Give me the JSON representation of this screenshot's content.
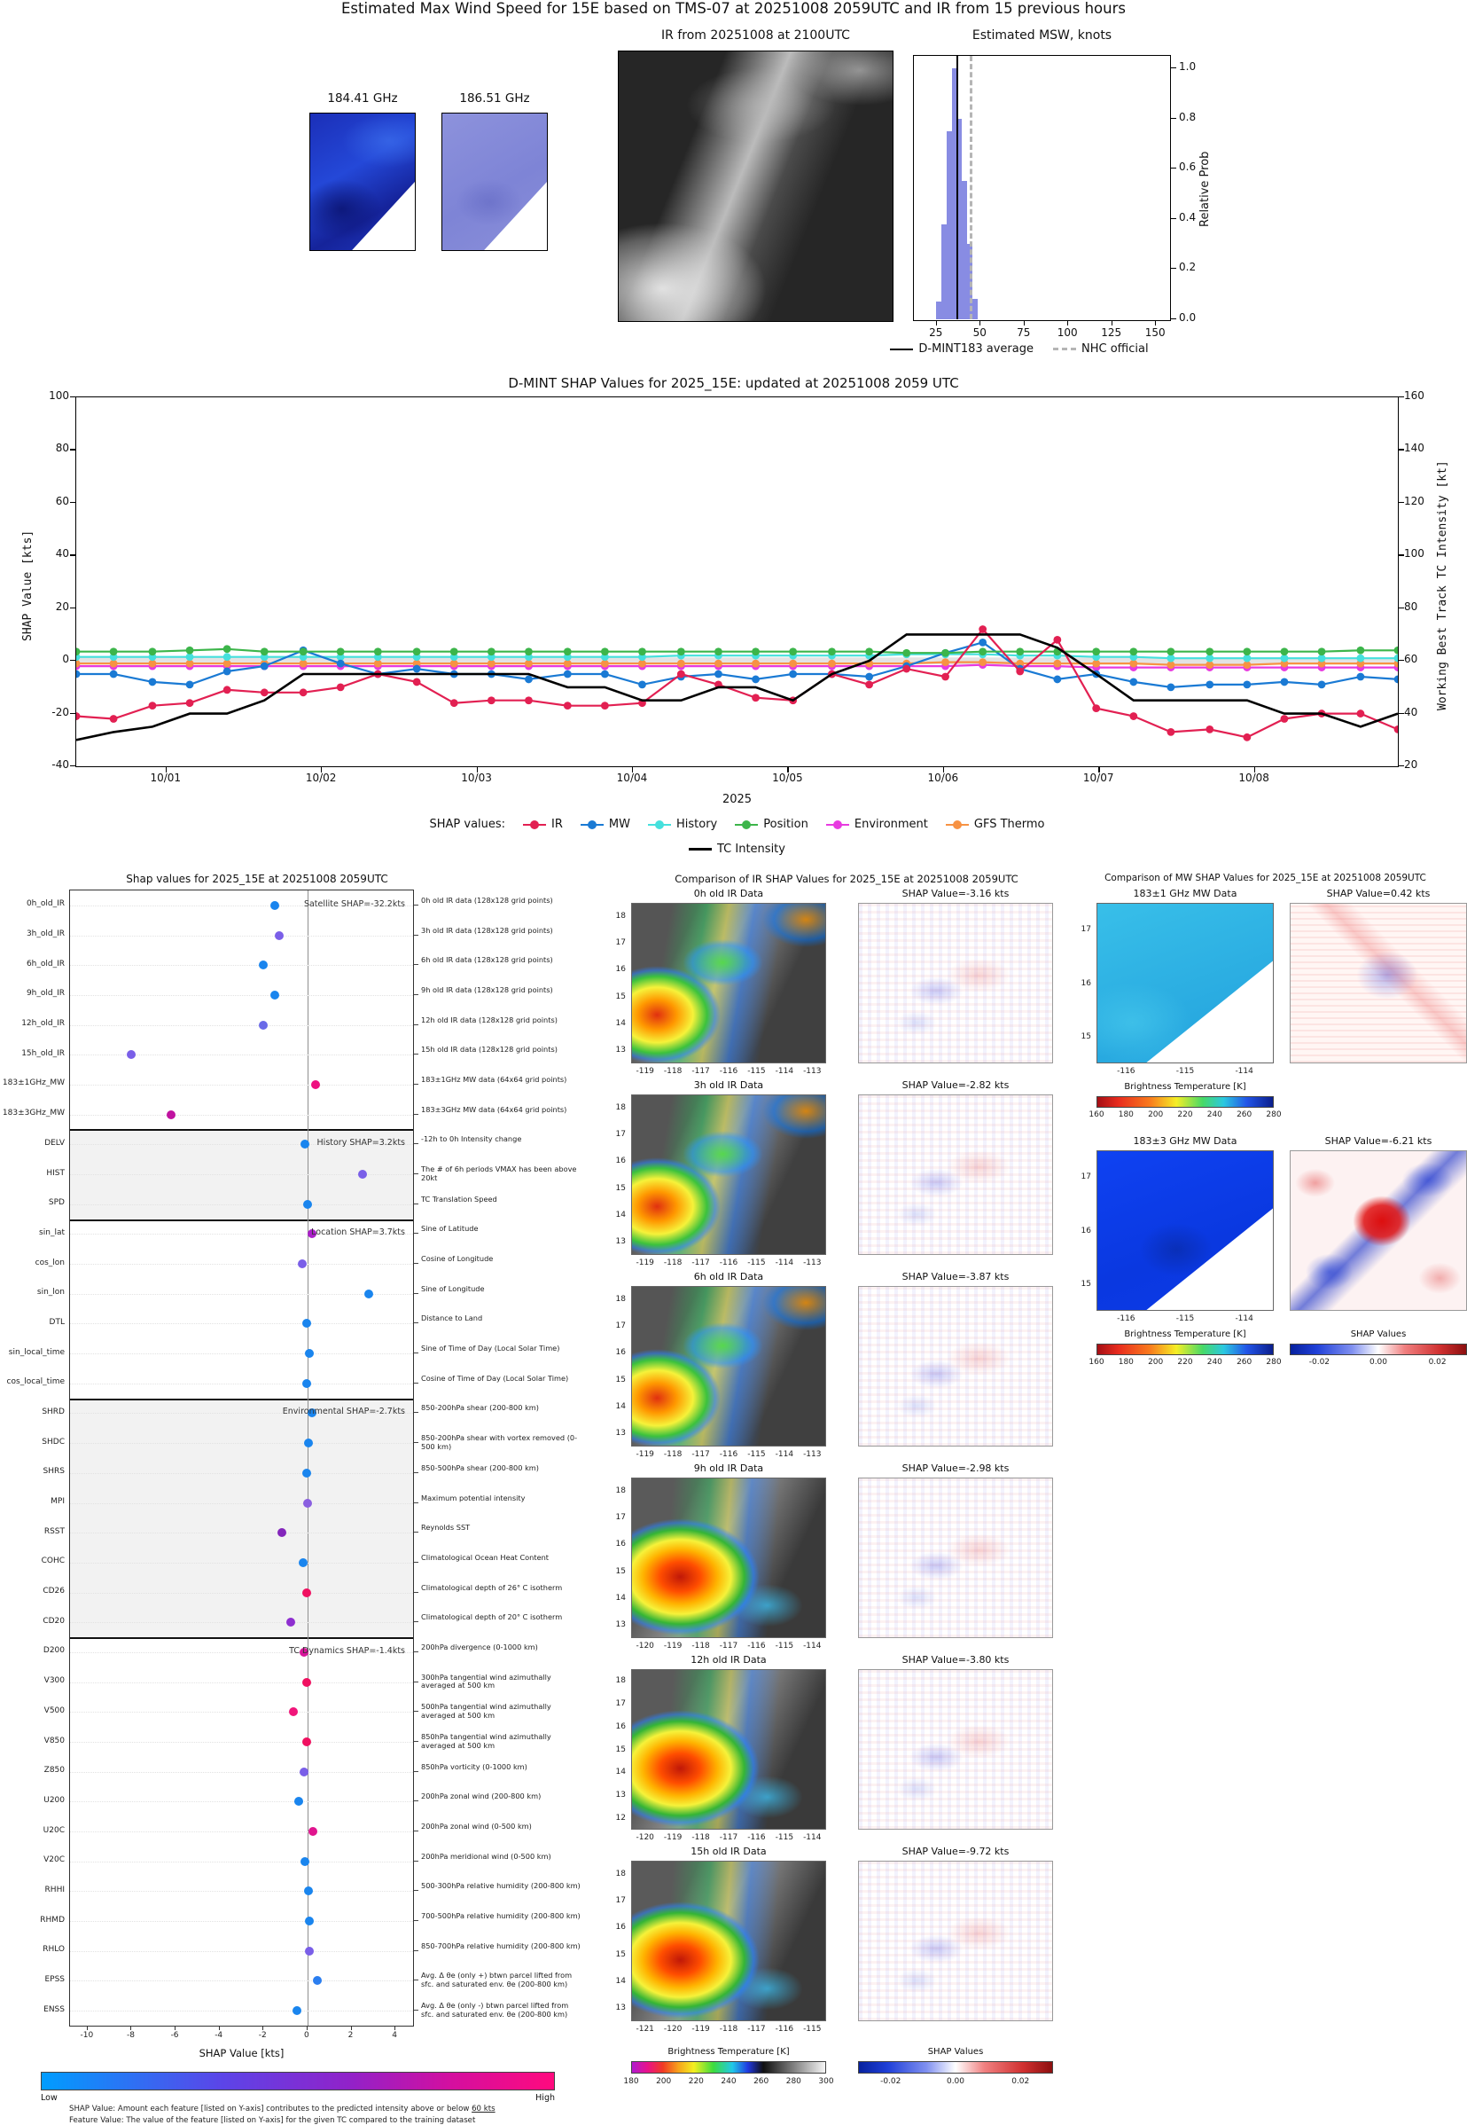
{
  "page": {
    "title_main": "Estimated Max Wind Speed for 15E based on TMS-07 at 20251008 2059UTC and IR from 15 previous hours"
  },
  "top": {
    "mw1_label": "184.41 GHz",
    "mw2_label": "186.51 GHz",
    "ir_subtitle": "IR from 20251008 at 2100UTC",
    "hist_title": "Estimated MSW, knots",
    "hist_ylabel": "Relative Prob",
    "legend_avg": "D-MINT183 average",
    "legend_nhc": "NHC official"
  },
  "timeseries": {
    "title": "D-MINT SHAP Values for 2025_15E: updated at 20251008 2059 UTC",
    "ylabel_left": "SHAP Value [kts]",
    "ylabel_right": "Working Best Track TC Intensity [kt]",
    "xlabel": "2025",
    "legend_prefix": "SHAP values:"
  },
  "dotplot": {
    "title": "Shap values for 2025_15E at 20251008 2059UTC",
    "xlabel": "SHAP Value [kts]",
    "colorbar_low": "Low",
    "colorbar_high": "High",
    "footnote1a": "SHAP Value: Amount each feature [listed on Y-axis] contributes to the predicted intensity above or below ",
    "footnote1b": "60 kts",
    "footnote2": "Feature Value: The value of the feature [listed on Y-axis] for the given TC compared to the training dataset"
  },
  "chart_data": [
    {
      "type": "bar",
      "title": "Estimated MSW, knots",
      "ylabel": "Relative Prob",
      "xlim": [
        12,
        158
      ],
      "ylim": [
        0,
        1.05
      ],
      "x_ticks": [
        25,
        50,
        75,
        100,
        125,
        150
      ],
      "y_tick_labels": [
        "1.0",
        "0.8",
        "0.6",
        "0.4",
        "0.2",
        "0.0"
      ],
      "y_tick_values": [
        1.0,
        0.8,
        0.6,
        0.4,
        0.2,
        0.0
      ],
      "bin_centers": [
        26,
        29,
        32,
        35,
        38,
        41,
        44,
        47
      ],
      "bin_width": 3,
      "heights": [
        0.07,
        0.38,
        0.75,
        1.0,
        0.8,
        0.55,
        0.3,
        0.08
      ],
      "dmint183_average_kts": 36,
      "nhc_official_kts": 44,
      "bar_color": "#7b7fe0"
    },
    {
      "type": "line",
      "title": "D-MINT SHAP Values for 2025_15E: updated at 20251008 2059 UTC",
      "xlabel": "2025",
      "ylabel_left": "SHAP Value [kts]",
      "ylabel_right": "Working Best Track TC Intensity [kt]",
      "xlim": [
        0,
        8.5
      ],
      "ylim_left": [
        -40,
        100
      ],
      "ylim_right": [
        20,
        160
      ],
      "y_ticks_left": [
        100,
        80,
        60,
        40,
        20,
        0,
        -20,
        -40
      ],
      "y_ticks_right": [
        160,
        140,
        120,
        100,
        80,
        60,
        40,
        20
      ],
      "x_tick_positions": [
        0.58,
        1.58,
        2.58,
        3.58,
        4.58,
        5.58,
        6.58,
        7.58
      ],
      "x_tick_labels": [
        "10/01",
        "10/02",
        "10/03",
        "10/04",
        "10/05",
        "10/06",
        "10/07",
        "10/08"
      ],
      "x_days": [
        0,
        0.24,
        0.49,
        0.73,
        0.97,
        1.21,
        1.46,
        1.7,
        1.94,
        2.19,
        2.43,
        2.67,
        2.91,
        3.16,
        3.4,
        3.64,
        3.89,
        4.13,
        4.37,
        4.61,
        4.86,
        5.1,
        5.34,
        5.59,
        5.83,
        6.07,
        6.31,
        6.56,
        6.8,
        7.04,
        7.29,
        7.53,
        7.77,
        8.01,
        8.26,
        8.5
      ],
      "series": [
        {
          "name": "IR",
          "color": "#e22052",
          "values": [
            -21,
            -22,
            -17,
            -16,
            -11,
            -12,
            -12,
            -10,
            -5,
            -8,
            -16,
            -15,
            -15,
            -17,
            -17,
            -16,
            -5,
            -9,
            -14,
            -15,
            -5,
            -9,
            -3,
            -6,
            12,
            -4,
            8,
            -18,
            -21,
            -27,
            -26,
            -29,
            -22,
            -20,
            -20,
            -26
          ]
        },
        {
          "name": "MW",
          "color": "#1a7ad4",
          "values": [
            -5,
            -5,
            -8,
            -9,
            -4,
            -2,
            4,
            -1,
            -5,
            -3,
            -5,
            -5,
            -7,
            -5,
            -5,
            -9,
            -6,
            -5,
            -7,
            -5,
            -5,
            -6,
            -2,
            3,
            7,
            -3,
            -7,
            -5,
            -8,
            -10,
            -9,
            -9,
            -8,
            -9,
            -6,
            -7
          ]
        },
        {
          "name": "History",
          "color": "#45e0dd",
          "values": [
            1.5,
            1.5,
            1.5,
            1.5,
            1.5,
            1.5,
            1.5,
            1.5,
            1.5,
            1.5,
            1.5,
            1.5,
            1.5,
            1.5,
            1.5,
            1.5,
            2,
            2,
            2,
            2,
            2,
            2,
            2.5,
            2.5,
            2.5,
            2,
            2,
            1.5,
            1.5,
            1,
            1,
            1,
            1,
            1,
            1,
            1
          ]
        },
        {
          "name": "Position",
          "color": "#3cb54a",
          "values": [
            3.5,
            3.5,
            3.5,
            4,
            4.5,
            3.5,
            3.5,
            3.5,
            3.5,
            3.5,
            3.5,
            3.5,
            3.5,
            3.5,
            3.5,
            3.5,
            3.5,
            3.5,
            3.5,
            3.5,
            3.5,
            3.5,
            3,
            3,
            3.5,
            3.5,
            3.5,
            3.5,
            3.5,
            3.5,
            3.5,
            3.5,
            3.5,
            3.5,
            4,
            4
          ]
        },
        {
          "name": "Environment",
          "color": "#e83ae0",
          "values": [
            -2,
            -2,
            -2,
            -2,
            -2,
            -2,
            -2,
            -2,
            -2,
            -2,
            -2,
            -2,
            -2,
            -2,
            -2,
            -2,
            -2,
            -2,
            -2,
            -2,
            -2,
            -2,
            -2,
            -2,
            -1.5,
            -2,
            -2,
            -2.5,
            -2.5,
            -2.5,
            -2.5,
            -2.5,
            -2.5,
            -2.5,
            -2.5,
            -2.5
          ]
        },
        {
          "name": "GFS Thermo",
          "color": "#f79243",
          "values": [
            -1,
            -1,
            -1,
            -1,
            -1,
            -1,
            -1,
            -1,
            -1,
            -1,
            -1,
            -1,
            -1,
            -1,
            -1,
            -1,
            -1,
            -1,
            -1,
            -1,
            -1,
            -1,
            -1,
            -0.5,
            -0.5,
            -1,
            -1,
            -1,
            -1,
            -1.5,
            -1.5,
            -1.5,
            -1,
            -1,
            -1,
            -1
          ]
        },
        {
          "name": "TC Intensity",
          "color": "#000000",
          "values": [
            -30,
            -27,
            -25,
            -20,
            -20,
            -15,
            -5,
            -5,
            -5,
            -5,
            -5,
            -5,
            -5,
            -10,
            -10,
            -15,
            -15,
            -10,
            -10,
            -15,
            -5,
            0,
            10,
            10,
            10,
            10,
            5,
            -5,
            -15,
            -15,
            -15,
            -15,
            -20,
            -20,
            -25,
            -20
          ]
        }
      ]
    },
    {
      "type": "scatter",
      "title": "Shap values for 2025_15E at 20251008 2059UTC",
      "xlabel": "SHAP Value [kts]",
      "xlim": [
        -10.8,
        4.8
      ],
      "x_ticks": [
        -10,
        -8,
        -6,
        -4,
        -2,
        0,
        2,
        4
      ],
      "sections": [
        {
          "label": "Satellite SHAP=-32.2kts",
          "start": 0,
          "end": 7,
          "shaded": false
        },
        {
          "label": "History SHAP=3.2kts",
          "start": 8,
          "end": 10,
          "shaded": true
        },
        {
          "label": "Location SHAP=3.7kts",
          "start": 11,
          "end": 16,
          "shaded": false
        },
        {
          "label": "Environmental SHAP=-2.7kts",
          "start": 17,
          "end": 24,
          "shaded": true
        },
        {
          "label": "TC Dynamics SHAP=-1.4kts",
          "start": 25,
          "end": 37,
          "shaded": false
        }
      ],
      "features": [
        {
          "name": "0h_old_IR",
          "value": -1.5,
          "color": "#1a85ee",
          "desc": "0h old IR data (128x128 grid points)"
        },
        {
          "name": "3h_old_IR",
          "value": -1.3,
          "color": "#7a5fe8",
          "desc": "3h old IR data (128x128 grid points)"
        },
        {
          "name": "6h_old_IR",
          "value": -2.0,
          "color": "#1a85ee",
          "desc": "6h old IR data (128x128 grid points)"
        },
        {
          "name": "9h_old_IR",
          "value": -1.5,
          "color": "#1a85ee",
          "desc": "9h old IR data (128x128 grid points)"
        },
        {
          "name": "12h_old_IR",
          "value": -2.0,
          "color": "#6a6ae8",
          "desc": "12h old IR data (128x128 grid points)"
        },
        {
          "name": "15h_old_IR",
          "value": -8.0,
          "color": "#7a5fe8",
          "desc": "15h old IR data (128x128 grid points)"
        },
        {
          "name": "183±1GHz_MW",
          "value": 0.35,
          "color": "#ee1080",
          "desc": "183±1GHz MW data (64x64 grid points)"
        },
        {
          "name": "183±3GHz_MW",
          "value": -6.2,
          "color": "#c013a0",
          "desc": "183±3GHz MW data (64x64 grid points)"
        },
        {
          "name": "DELV",
          "value": -0.1,
          "color": "#1a85ee",
          "desc": "-12h to 0h Intensity change"
        },
        {
          "name": "HIST",
          "value": 2.5,
          "color": "#7a5fe8",
          "desc": "The # of 6h periods VMAX has been above 20kt"
        },
        {
          "name": "SPD",
          "value": 0.0,
          "color": "#1a85ee",
          "desc": "TC Translation Speed"
        },
        {
          "name": "sin_lat",
          "value": 0.2,
          "color": "#aa1fc8",
          "desc": "Sine of Latitude"
        },
        {
          "name": "cos_lon",
          "value": -0.25,
          "color": "#7a5fe8",
          "desc": "Cosine of Longitude"
        },
        {
          "name": "sin_lon",
          "value": 2.8,
          "color": "#1a85ee",
          "desc": "Sine of Longitude"
        },
        {
          "name": "DTL",
          "value": -0.05,
          "color": "#1a85ee",
          "desc": "Distance to Land"
        },
        {
          "name": "sin_local_time",
          "value": 0.1,
          "color": "#1a85ee",
          "desc": "Sine of Time of Day (Local Solar Time)"
        },
        {
          "name": "cos_local_time",
          "value": -0.05,
          "color": "#1a85ee",
          "desc": "Cosine of Time of Day (Local Solar Time)"
        },
        {
          "name": "SHRD",
          "value": 0.2,
          "color": "#1a85ee",
          "desc": "850-200hPa shear (200-800 km)"
        },
        {
          "name": "SHDC",
          "value": 0.05,
          "color": "#1a85ee",
          "desc": "850-200hPa shear with vortex removed (0-500 km)"
        },
        {
          "name": "SHRS",
          "value": -0.05,
          "color": "#1a85ee",
          "desc": "850-500hPa shear (200-800 km)"
        },
        {
          "name": "MPI",
          "value": 0.0,
          "color": "#8a5fe0",
          "desc": "Maximum potential intensity"
        },
        {
          "name": "RSST",
          "value": -1.15,
          "color": "#8326bb",
          "desc": "Reynolds SST"
        },
        {
          "name": "COHC",
          "value": -0.2,
          "color": "#1a85ee",
          "desc": "Climatological Ocean Heat Content"
        },
        {
          "name": "CD26",
          "value": -0.05,
          "color": "#f01060",
          "desc": "Climatological depth of 26° C isotherm"
        },
        {
          "name": "CD20",
          "value": -0.75,
          "color": "#8e2fd0",
          "desc": "Climatological depth of 20° C isotherm"
        },
        {
          "name": "D200",
          "value": -0.15,
          "color": "#d8159a",
          "desc": "200hPa divergence (0-1000 km)"
        },
        {
          "name": "V300",
          "value": -0.05,
          "color": "#f01060",
          "desc": "300hPa tangential wind azimuthally averaged at 500 km"
        },
        {
          "name": "V500",
          "value": -0.65,
          "color": "#f0157a",
          "desc": "500hPa tangential wind azimuthally averaged at 500 km"
        },
        {
          "name": "V850",
          "value": -0.05,
          "color": "#f01060",
          "desc": "850hPa tangential wind azimuthally averaged at 500 km"
        },
        {
          "name": "Z850",
          "value": -0.15,
          "color": "#7a5fe8",
          "desc": "850hPa vorticity (0-1000 km)"
        },
        {
          "name": "U200",
          "value": -0.4,
          "color": "#1a85ee",
          "desc": "200hPa zonal wind (200-800 km)"
        },
        {
          "name": "U20C",
          "value": 0.25,
          "color": "#e0148e",
          "desc": "200hPa zonal wind (0-500 km)"
        },
        {
          "name": "V20C",
          "value": -0.1,
          "color": "#1a85ee",
          "desc": "200hPa meridional wind (0-500 km)"
        },
        {
          "name": "RHHI",
          "value": 0.05,
          "color": "#1a85ee",
          "desc": "500-300hPa relative humidity (200-800 km)"
        },
        {
          "name": "RHMD",
          "value": 0.1,
          "color": "#1a85ee",
          "desc": "700-500hPa relative humidity (200-800 km)"
        },
        {
          "name": "RHLO",
          "value": 0.1,
          "color": "#7a5fe8",
          "desc": "850-700hPa relative humidity (200-800 km)"
        },
        {
          "name": "EPSS",
          "value": 0.45,
          "color": "#2b7ef0",
          "desc": "Avg. Δ θe (only +) btwn parcel lifted from sfc. and saturated env. θe (200-800 km)"
        },
        {
          "name": "ENSS",
          "value": -0.5,
          "color": "#1a85ee",
          "desc": "Avg. Δ θe (only -) btwn parcel lifted from sfc. and saturated env. θe (200-800 km)"
        }
      ]
    },
    {
      "type": "heatmap",
      "title": "Comparison of IR SHAP Values for 2025_15E at 20251008 2059UTC",
      "bt_label": "Brightness Temperature [K]",
      "bt_ticks": [
        180,
        200,
        220,
        240,
        260,
        280,
        300
      ],
      "shap_label": "SHAP Values",
      "shap_ticks": [
        "-0.02",
        "0.00",
        "0.02"
      ],
      "rows": [
        {
          "data_title": "0h old IR Data",
          "shap_title": "SHAP Value=-3.16 kts",
          "x_ticks": [
            -119,
            -118,
            -117,
            -116,
            -115,
            -114,
            -113
          ],
          "y_ticks": [
            18,
            17,
            16,
            15,
            14,
            13
          ]
        },
        {
          "data_title": "3h old IR Data",
          "shap_title": "SHAP Value=-2.82 kts",
          "x_ticks": [
            -119,
            -118,
            -117,
            -116,
            -115,
            -114,
            -113
          ],
          "y_ticks": [
            18,
            17,
            16,
            15,
            14,
            13
          ]
        },
        {
          "data_title": "6h old IR Data",
          "shap_title": "SHAP Value=-3.87 kts",
          "x_ticks": [
            -119,
            -118,
            -117,
            -116,
            -115,
            -114,
            -113
          ],
          "y_ticks": [
            18,
            17,
            16,
            15,
            14,
            13
          ]
        },
        {
          "data_title": "9h old IR Data",
          "shap_title": "SHAP Value=-2.98 kts",
          "x_ticks": [
            -120,
            -119,
            -118,
            -117,
            -116,
            -115,
            -114
          ],
          "y_ticks": [
            18,
            17,
            16,
            15,
            14,
            13
          ]
        },
        {
          "data_title": "12h old IR Data",
          "shap_title": "SHAP Value=-3.80 kts",
          "x_ticks": [
            -120,
            -119,
            -118,
            -117,
            -116,
            -115,
            -114
          ],
          "y_ticks": [
            18,
            17,
            16,
            15,
            14,
            13,
            12
          ]
        },
        {
          "data_title": "15h old IR Data",
          "shap_title": "SHAP Value=-9.72 kts",
          "x_ticks": [
            -121,
            -120,
            -119,
            -118,
            -117,
            -116,
            -115
          ],
          "y_ticks": [
            18,
            17,
            16,
            15,
            14,
            13
          ]
        }
      ]
    },
    {
      "type": "heatmap",
      "title": "Comparison of MW SHAP Values for 2025_15E at 20251008 2059UTC",
      "bt_label": "Brightness Temperature [K]",
      "bt_ticks": [
        160,
        180,
        200,
        220,
        240,
        260,
        280
      ],
      "shap_label": "SHAP Values",
      "shap_ticks": [
        "-0.02",
        "0.00",
        "0.02"
      ],
      "rows": [
        {
          "data_title": "183±1 GHz MW Data",
          "shap_title": "SHAP Value=0.42 kts",
          "x_ticks": [
            -116,
            -115,
            -114
          ],
          "y_ticks": [
            17,
            16,
            15
          ]
        },
        {
          "data_title": "183±3 GHz MW Data",
          "shap_title": "SHAP Value=-6.21 kts",
          "x_ticks": [
            -116,
            -115,
            -114
          ],
          "y_ticks": [
            17,
            16,
            15
          ]
        }
      ]
    }
  ]
}
